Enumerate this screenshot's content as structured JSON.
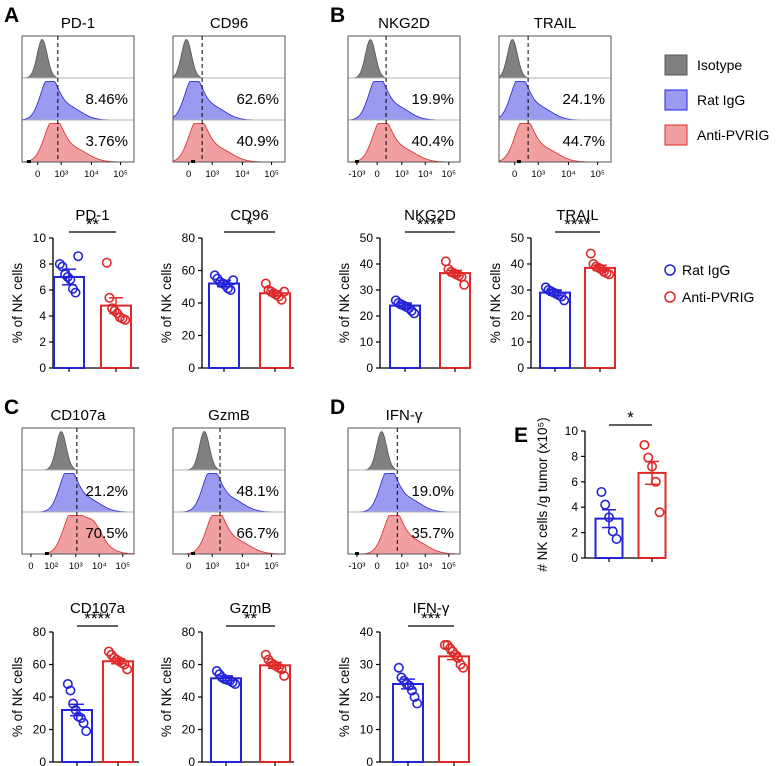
{
  "colors": {
    "rat_igg": "#2323d8",
    "anti_pvrig": "#e02828",
    "isotype_fill": "#808080",
    "rat_fill": "#9a9af0",
    "anti_fill": "#f0a0a0"
  },
  "panel_letters": [
    "A",
    "B",
    "C",
    "D",
    "E"
  ],
  "flow_legend": [
    "Isotype",
    "Rat IgG",
    "Anti-PVRIG"
  ],
  "bar_legend": [
    "Rat IgG",
    "Anti-PVRIG"
  ],
  "flow_panels": [
    {
      "title": "PD-1",
      "peak": 0.18,
      "pct_rat": "8.46%",
      "pct_anti": "3.76%",
      "ticks": [
        "0",
        "10³",
        "10⁴",
        "10⁵"
      ]
    },
    {
      "title": "CD96",
      "peak": 0.12,
      "pct_rat": "62.6%",
      "pct_anti": "40.9%",
      "ticks": [
        "0",
        "10³",
        "10⁴",
        "10⁵"
      ]
    },
    {
      "title": "NKG2D",
      "peak": 0.2,
      "pct_rat": "19.9%",
      "pct_anti": "40.4%",
      "ticks": [
        "-10³",
        "0",
        "10³",
        "10⁴",
        "10⁵"
      ]
    },
    {
      "title": "TRAIL",
      "peak": 0.12,
      "pct_rat": "24.1%",
      "pct_anti": "44.7%",
      "ticks": [
        "0",
        "10³",
        "10⁴",
        "10⁵"
      ]
    },
    {
      "title": "CD107a",
      "peak": 0.35,
      "pct_rat": "21.2%",
      "pct_anti": "70.5%",
      "ticks": [
        "0",
        "10²",
        "10³",
        "10⁴",
        "10⁵"
      ]
    },
    {
      "title": "GzmB",
      "peak": 0.28,
      "pct_rat": "48.1%",
      "pct_anti": "66.7%",
      "ticks": [
        "0",
        "10³",
        "10⁴",
        "10⁵"
      ]
    },
    {
      "title": "IFN-γ",
      "peak": 0.3,
      "pct_rat": "19.0%",
      "pct_anti": "35.7%",
      "ticks": [
        "-10³",
        "0",
        "10³",
        "10⁴",
        "10⁵"
      ]
    }
  ],
  "chart_data": [
    {
      "type": "bar",
      "title": "PD-1",
      "ylabel": "% of NK cells",
      "ylim": [
        0,
        10
      ],
      "yticks": [
        "0",
        "2",
        "4",
        "6",
        "8",
        "10"
      ],
      "significance": "**",
      "series": [
        {
          "name": "Rat IgG",
          "mean": 7.0,
          "sem": 0.6,
          "points": [
            8.0,
            7.8,
            7.2,
            7.0,
            6.8,
            6.1,
            5.8,
            8.6
          ]
        },
        {
          "name": "Anti-PVRIG",
          "mean": 4.8,
          "sem": 0.6,
          "points": [
            8.1,
            5.4,
            4.6,
            4.4,
            4.2,
            3.9,
            3.8,
            3.7
          ]
        }
      ]
    },
    {
      "type": "bar",
      "title": "CD96",
      "ylabel": "% of NK cells",
      "ylim": [
        0,
        80
      ],
      "yticks": [
        "0",
        "20",
        "40",
        "60",
        "80"
      ],
      "significance": "*",
      "series": [
        {
          "name": "Rat IgG",
          "mean": 52,
          "sem": 2,
          "points": [
            57,
            55,
            53,
            52,
            51,
            49,
            48,
            54
          ]
        },
        {
          "name": "Anti-PVRIG",
          "mean": 46,
          "sem": 1.5,
          "points": [
            52,
            48,
            47,
            46,
            45,
            44,
            42,
            47
          ]
        }
      ]
    },
    {
      "type": "bar",
      "title": "NKG2D",
      "ylabel": "% of NK cells",
      "ylim": [
        0,
        50
      ],
      "yticks": [
        "0",
        "10",
        "20",
        "30",
        "40",
        "50"
      ],
      "significance": "****",
      "series": [
        {
          "name": "Rat IgG",
          "mean": 24,
          "sem": 1,
          "points": [
            26,
            25,
            24.5,
            24,
            23.5,
            23,
            22,
            21
          ]
        },
        {
          "name": "Anti-PVRIG",
          "mean": 36.5,
          "sem": 1,
          "points": [
            41,
            38,
            37,
            36.5,
            36,
            35.5,
            35,
            32
          ]
        }
      ]
    },
    {
      "type": "bar",
      "title": "TRAIL",
      "ylabel": "% of NK cells",
      "ylim": [
        0,
        50
      ],
      "yticks": [
        "0",
        "10",
        "20",
        "30",
        "40",
        "50"
      ],
      "significance": "****",
      "series": [
        {
          "name": "Rat IgG",
          "mean": 29,
          "sem": 1,
          "points": [
            31,
            30,
            29.5,
            29,
            28.5,
            28,
            27.5,
            26
          ]
        },
        {
          "name": "Anti-PVRIG",
          "mean": 38.5,
          "sem": 1,
          "points": [
            44,
            40,
            39,
            38.5,
            38,
            37,
            36.5,
            36
          ]
        }
      ]
    },
    {
      "type": "bar",
      "title": "CD107a",
      "ylabel": "% of NK cells",
      "ylim": [
        0,
        80
      ],
      "yticks": [
        "0",
        "20",
        "40",
        "60",
        "80"
      ],
      "significance": "****",
      "series": [
        {
          "name": "Rat IgG",
          "mean": 32,
          "sem": 3.5,
          "points": [
            48,
            44,
            36,
            32,
            28,
            27,
            24,
            19
          ]
        },
        {
          "name": "Anti-PVRIG",
          "mean": 62,
          "sem": 1.5,
          "points": [
            68,
            66,
            64,
            63,
            62,
            61,
            60,
            57
          ]
        }
      ]
    },
    {
      "type": "bar",
      "title": "GzmB",
      "ylabel": "% of NK cells",
      "ylim": [
        0,
        80
      ],
      "yticks": [
        "0",
        "20",
        "40",
        "60",
        "80"
      ],
      "significance": "**",
      "series": [
        {
          "name": "Rat IgG",
          "mean": 51.5,
          "sem": 1.5,
          "points": [
            56,
            54,
            52,
            51,
            50.5,
            50,
            49,
            48
          ]
        },
        {
          "name": "Anti-PVRIG",
          "mean": 59.5,
          "sem": 1.8,
          "points": [
            66,
            63,
            61,
            60,
            59,
            58,
            57,
            53
          ]
        }
      ]
    },
    {
      "type": "bar",
      "title": "IFN-γ",
      "ylabel": "% of NK cells",
      "ylim": [
        0,
        40
      ],
      "yticks": [
        "0",
        "10",
        "20",
        "30",
        "40"
      ],
      "significance": "***",
      "series": [
        {
          "name": "Rat IgG",
          "mean": 24,
          "sem": 1.5,
          "points": [
            29,
            26,
            25,
            24,
            23.5,
            22,
            20,
            18
          ]
        },
        {
          "name": "Anti-PVRIG",
          "mean": 32.5,
          "sem": 1,
          "points": [
            36,
            36,
            35,
            34,
            33,
            32,
            30,
            29
          ]
        }
      ]
    },
    {
      "type": "bar",
      "title": "",
      "ylabel": "# NK cells /g tumor (x10⁵)",
      "ylim": [
        0,
        10
      ],
      "yticks": [
        "0",
        "2",
        "4",
        "6",
        "8",
        "10"
      ],
      "significance": "*",
      "series": [
        {
          "name": "Rat IgG",
          "mean": 3.1,
          "sem": 0.7,
          "points": [
            5.2,
            4.2,
            3.2,
            2.1,
            1.5
          ]
        },
        {
          "name": "Anti-PVRIG",
          "mean": 6.7,
          "sem": 0.9,
          "points": [
            8.9,
            7.9,
            7.2,
            6.0,
            3.6
          ]
        }
      ]
    }
  ]
}
